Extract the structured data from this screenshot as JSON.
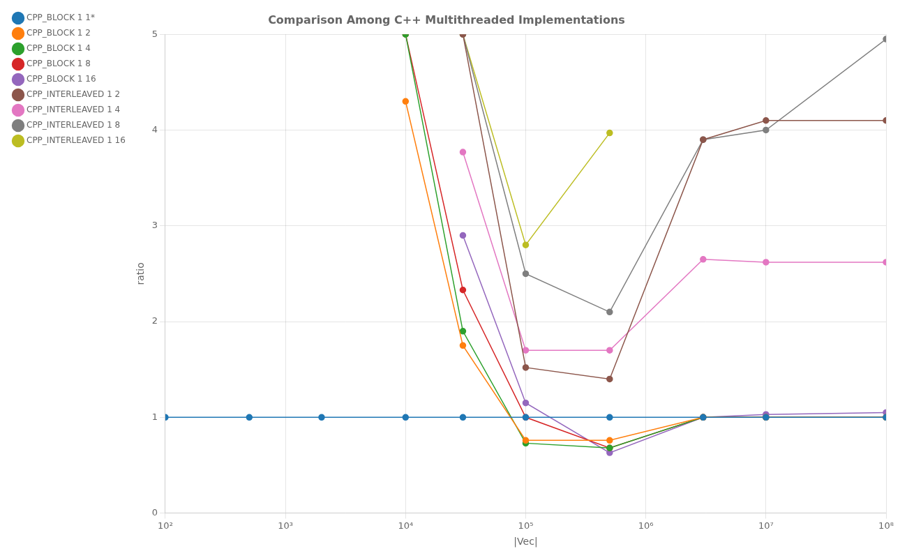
{
  "chart_data": {
    "type": "line",
    "title": "Comparison Among C++ Multithreaded Implementations",
    "xlabel": "|Vec|",
    "ylabel": "ratio",
    "log": "x",
    "xlim": [
      100,
      100000000
    ],
    "ylim": [
      0,
      5
    ],
    "xticks": [
      {
        "value": 100,
        "label": "10²"
      },
      {
        "value": 1000,
        "label": "10³"
      },
      {
        "value": 10000,
        "label": "10⁴"
      },
      {
        "value": 100000,
        "label": "10⁵"
      },
      {
        "value": 1000000,
        "label": "10⁶"
      },
      {
        "value": 10000000,
        "label": "10⁷"
      },
      {
        "value": 100000000,
        "label": "10⁸"
      }
    ],
    "yticks": [
      0,
      1,
      2,
      3,
      4,
      5
    ],
    "grid": true,
    "legend": "upper left",
    "marker": "circle",
    "line_style": "solid",
    "series": [
      {
        "name": "CPP_BLOCK 1 1*",
        "color": "#1f77b4",
        "x": [
          100,
          500,
          2000,
          10000,
          30000,
          100000,
          500000,
          3000000,
          10000000,
          100000000
        ],
        "values": [
          1.0,
          1.0,
          1.0,
          1.0,
          1.0,
          1.0,
          1.0,
          1.0,
          1.0,
          1.0
        ]
      },
      {
        "name": "CPP_BLOCK 1 2",
        "color": "#ff7f0e",
        "x": [
          10000,
          30000,
          100000,
          500000,
          3000000,
          10000000,
          100000000
        ],
        "values": [
          4.3,
          1.75,
          0.76,
          0.76,
          1.0,
          1.0,
          1.0
        ]
      },
      {
        "name": "CPP_BLOCK 1 4",
        "color": "#2ca02c",
        "x": [
          10000,
          30000,
          100000,
          500000,
          3000000,
          10000000,
          100000000
        ],
        "values": [
          5.0,
          1.9,
          0.73,
          0.68,
          1.0,
          1.0,
          1.0
        ]
      },
      {
        "name": "CPP_BLOCK 1 8",
        "color": "#d62728",
        "x": [
          10000,
          30000,
          100000,
          500000,
          3000000,
          10000000,
          100000000
        ],
        "values": [
          5.0,
          2.33,
          1.0,
          0.68,
          1.0,
          1.0,
          1.0
        ]
      },
      {
        "name": "CPP_BLOCK 1 16",
        "color": "#9467bd",
        "x": [
          30000,
          100000,
          500000,
          3000000,
          10000000,
          100000000
        ],
        "values": [
          2.9,
          1.15,
          0.63,
          1.0,
          1.03,
          1.05
        ]
      },
      {
        "name": "CPP_INTERLEAVED 1 2",
        "color": "#8c564b",
        "x": [
          30000,
          100000,
          500000,
          3000000,
          10000000,
          100000000
        ],
        "values": [
          5.0,
          1.52,
          1.4,
          3.9,
          4.1,
          4.1
        ]
      },
      {
        "name": "CPP_INTERLEAVED 1 4",
        "color": "#e377c2",
        "x": [
          30000,
          100000,
          500000,
          3000000,
          10000000,
          100000000
        ],
        "values": [
          3.77,
          1.7,
          1.7,
          2.65,
          2.62,
          2.62
        ]
      },
      {
        "name": "CPP_INTERLEAVED 1 8",
        "color": "#7f7f7f",
        "x": [
          30000,
          100000,
          500000,
          3000000,
          10000000,
          100000000
        ],
        "values": [
          5.0,
          2.5,
          2.1,
          3.9,
          4.0,
          4.95
        ]
      },
      {
        "name": "CPP_INTERLEAVED 1 16",
        "color": "#bcbd22",
        "x": [
          30000,
          100000,
          500000
        ],
        "values": [
          5.0,
          2.8,
          3.97
        ]
      }
    ]
  }
}
